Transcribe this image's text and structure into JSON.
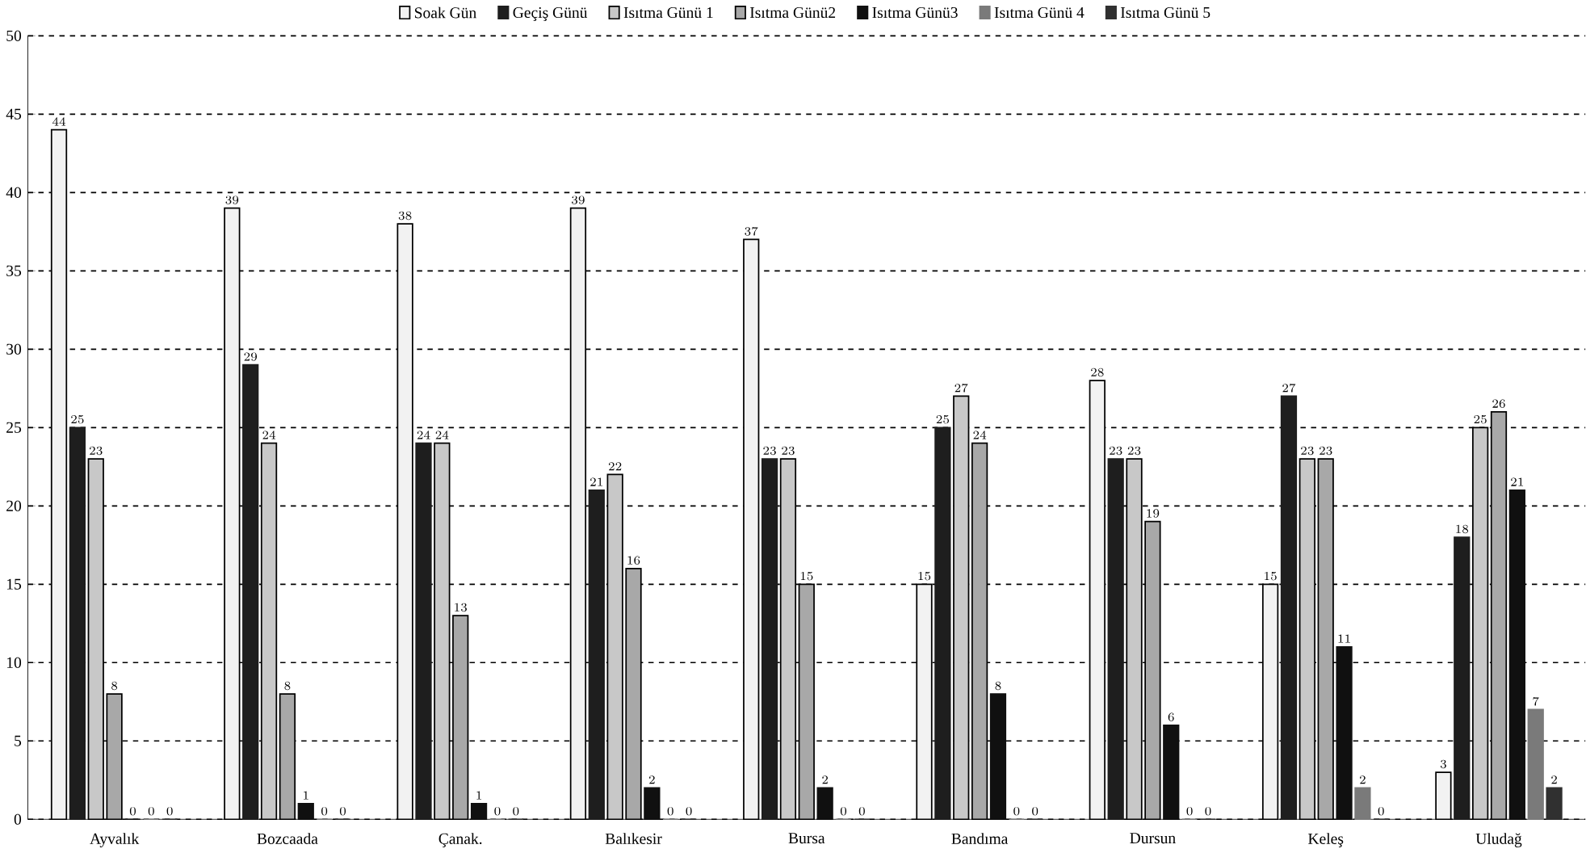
{
  "chart_data": {
    "type": "bar",
    "categories": [
      "Ayvalık",
      "Bozcaada",
      "Çanak.",
      "Balıkesir",
      "Bursa",
      "Bandıma",
      "Dursun",
      "Keleş",
      "Uludağ"
    ],
    "series": [
      {
        "name": "Soak Gün",
        "color": "#f2f2f2",
        "values": [
          44,
          39,
          38,
          39,
          37,
          15,
          28,
          15,
          3
        ]
      },
      {
        "name": "Geçiş Günü",
        "color": "#1e1e1e",
        "values": [
          25,
          29,
          24,
          21,
          23,
          25,
          23,
          27,
          18
        ]
      },
      {
        "name": "Isıtma Günü 1",
        "color": "#c8c8c8",
        "values": [
          23,
          24,
          24,
          22,
          23,
          27,
          23,
          23,
          25
        ]
      },
      {
        "name": "Isıtma Günü2",
        "color": "#a8a8a8",
        "values": [
          8,
          8,
          13,
          16,
          15,
          24,
          19,
          23,
          26
        ]
      },
      {
        "name": "Isıtma Günü3",
        "color": "#101010",
        "values": [
          0,
          1,
          1,
          2,
          2,
          8,
          6,
          11,
          21
        ]
      },
      {
        "name": "Isıtma Günü 4",
        "color": "#7a7a7a",
        "values": [
          0,
          0,
          0,
          0,
          0,
          0,
          0,
          2,
          7
        ]
      },
      {
        "name": "Isıtma Günü 5",
        "color": "#303030",
        "values": [
          0,
          0,
          0,
          0,
          0,
          0,
          0,
          0,
          2
        ]
      }
    ],
    "ylim": [
      0,
      50
    ],
    "yticks": [
      0,
      5,
      10,
      15,
      20,
      25,
      30,
      35,
      40,
      45,
      50
    ],
    "grid": "y",
    "legend": "top",
    "data_labels": true
  }
}
